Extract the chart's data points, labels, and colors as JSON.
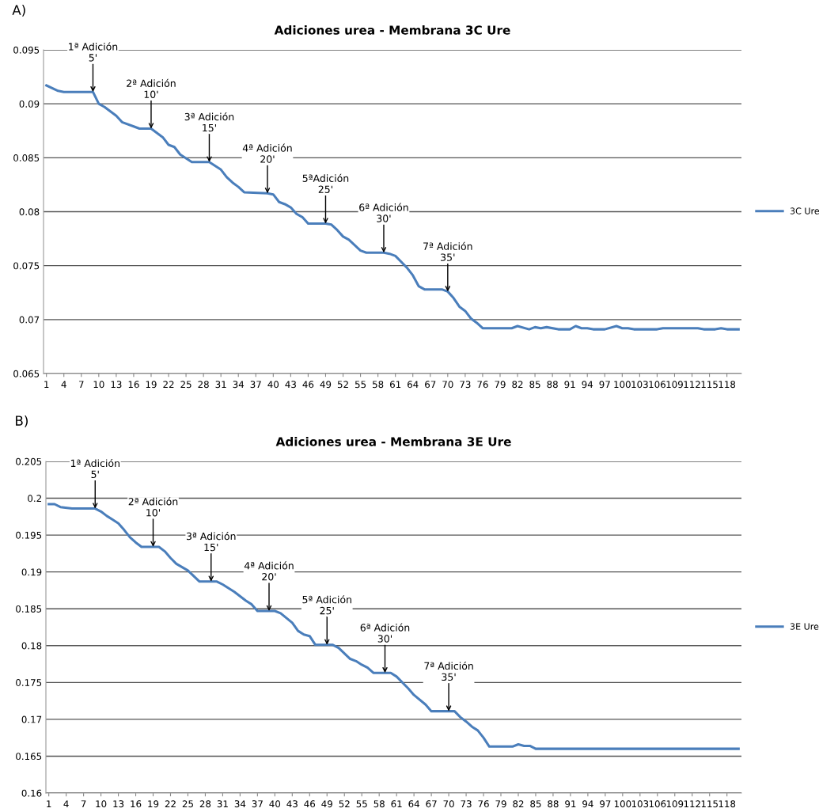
{
  "chart_data": [
    {
      "type": "line",
      "title": "Adiciones urea - Membrana 3C Ure",
      "xlim": [
        0.5,
        120.5
      ],
      "xticks": [
        1,
        4,
        7,
        10,
        13,
        16,
        19,
        22,
        25,
        28,
        31,
        34,
        37,
        40,
        43,
        46,
        49,
        52,
        55,
        58,
        61,
        64,
        67,
        70,
        73,
        76,
        79,
        82,
        85,
        88,
        91,
        94,
        97,
        100,
        103,
        106,
        109,
        112,
        115,
        118
      ],
      "ylim": [
        0.065,
        0.095
      ],
      "yticks": [
        0.065,
        0.07,
        0.075,
        0.08,
        0.085,
        0.09,
        0.095
      ],
      "grid": "y",
      "legend": "right",
      "marker": "none",
      "line_style": "solid",
      "series": [
        {
          "name": "3C Ure",
          "color": "#4a7ebb",
          "x": [
            1,
            3,
            4,
            9,
            10,
            11,
            13,
            14,
            16,
            17,
            19,
            21,
            22,
            23,
            24,
            26,
            29,
            31,
            32,
            33,
            34,
            35,
            39,
            40,
            41,
            42,
            43,
            44,
            45,
            46,
            49,
            50,
            51,
            52,
            53,
            55,
            56,
            59,
            60,
            61,
            63,
            64,
            65,
            66,
            69,
            70,
            71,
            72,
            73,
            74,
            75,
            76,
            81,
            82,
            84,
            85,
            86,
            87,
            89,
            91,
            92,
            93,
            94,
            95,
            97,
            99,
            100,
            101,
            102,
            106,
            107,
            113,
            114,
            116,
            117,
            118,
            120
          ],
          "values": [
            0.0917,
            0.0912,
            0.0911,
            0.0911,
            0.09,
            0.0897,
            0.0889,
            0.0883,
            0.0879,
            0.0877,
            0.0877,
            0.0869,
            0.0862,
            0.086,
            0.0853,
            0.0846,
            0.0846,
            0.0839,
            0.0832,
            0.0827,
            0.0823,
            0.0818,
            0.0817,
            0.0816,
            0.0809,
            0.0807,
            0.0804,
            0.0798,
            0.0795,
            0.0789,
            0.0789,
            0.0788,
            0.0783,
            0.0777,
            0.0774,
            0.0764,
            0.0762,
            0.0762,
            0.0761,
            0.0759,
            0.0748,
            0.0741,
            0.0731,
            0.0728,
            0.0728,
            0.0726,
            0.072,
            0.0712,
            0.0708,
            0.0701,
            0.0697,
            0.0692,
            0.0692,
            0.0694,
            0.0691,
            0.0693,
            0.0692,
            0.0693,
            0.0691,
            0.0691,
            0.0694,
            0.0692,
            0.0692,
            0.0691,
            0.0691,
            0.0694,
            0.0692,
            0.0692,
            0.0691,
            0.0691,
            0.0692,
            0.0692,
            0.0691,
            0.0691,
            0.0692,
            0.0691,
            0.0691
          ]
        }
      ],
      "annotations": [
        "A)",
        {
          "text": "1ª Adición\n5'",
          "x": 9,
          "y": 0.0911
        },
        {
          "text": "2ª Adición\n10'",
          "x": 19,
          "y": 0.0877
        },
        {
          "text": "3ª Adición\n15'",
          "x": 29,
          "y": 0.0846
        },
        {
          "text": "4ª Adición\n20'",
          "x": 39,
          "y": 0.0817
        },
        {
          "text": "5ªAdición\n25'",
          "x": 49,
          "y": 0.0789
        },
        {
          "text": "6ª Adición\n30'",
          "x": 59,
          "y": 0.0762
        },
        {
          "text": "7ª Adición\n35'",
          "x": 70,
          "y": 0.0726
        }
      ]
    },
    {
      "type": "line",
      "title": "Adiciones urea - Membrana 3E Ure",
      "xlim": [
        0.5,
        120.5
      ],
      "xticks": [
        1,
        4,
        7,
        10,
        13,
        16,
        19,
        22,
        25,
        28,
        31,
        34,
        37,
        40,
        43,
        46,
        49,
        52,
        55,
        58,
        61,
        64,
        67,
        70,
        73,
        76,
        79,
        82,
        85,
        88,
        91,
        94,
        97,
        100,
        103,
        106,
        109,
        112,
        115,
        118
      ],
      "ylim": [
        0.16,
        0.205
      ],
      "yticks": [
        0.16,
        0.165,
        0.17,
        0.175,
        0.18,
        0.185,
        0.19,
        0.195,
        0.2,
        0.205
      ],
      "grid": "y",
      "legend": "right",
      "marker": "none",
      "line_style": "solid",
      "series": [
        {
          "name": "3E Ure",
          "color": "#4a7ebb",
          "x": [
            1,
            2,
            3,
            5,
            9,
            10,
            11,
            12,
            13,
            14,
            15,
            16,
            17,
            20,
            21,
            22,
            23,
            25,
            27,
            30,
            31,
            33,
            35,
            36,
            37,
            40,
            41,
            43,
            44,
            45,
            46,
            47,
            50,
            51,
            53,
            54,
            55,
            56,
            57,
            60,
            61,
            63,
            64,
            66,
            67,
            71,
            72,
            73,
            74,
            75,
            76,
            77,
            81,
            82,
            83,
            84,
            85,
            120
          ],
          "values": [
            0.1992,
            0.1992,
            0.1988,
            0.1986,
            0.1986,
            0.1982,
            0.1976,
            0.1971,
            0.1966,
            0.1957,
            0.1947,
            0.194,
            0.1934,
            0.1934,
            0.1928,
            0.1919,
            0.1911,
            0.1902,
            0.1887,
            0.1887,
            0.1883,
            0.1873,
            0.1861,
            0.1856,
            0.1847,
            0.1847,
            0.1844,
            0.1831,
            0.182,
            0.1815,
            0.1813,
            0.1801,
            0.1801,
            0.1797,
            0.1782,
            0.1779,
            0.1774,
            0.177,
            0.1763,
            0.1763,
            0.1758,
            0.1742,
            0.1733,
            0.172,
            0.1711,
            0.1711,
            0.1703,
            0.1697,
            0.169,
            0.1685,
            0.1675,
            0.1663,
            0.1663,
            0.1666,
            0.1664,
            0.1664,
            0.166,
            0.166
          ]
        }
      ],
      "annotations": [
        "B)",
        {
          "text": "1ª Adición\n5'",
          "x": 9,
          "y": 0.1986
        },
        {
          "text": "2ª Adición\n10'",
          "x": 19,
          "y": 0.1934
        },
        {
          "text": "3ª Adición\n15'",
          "x": 29,
          "y": 0.1887
        },
        {
          "text": "4ª Adición\n20'",
          "x": 39,
          "y": 0.1847
        },
        {
          "text": "5ª Adición\n25'",
          "x": 49,
          "y": 0.1801
        },
        {
          "text": "6ª Adición\n30'",
          "x": 59,
          "y": 0.1763
        },
        {
          "text": "7ª Adición\n35'",
          "x": 70,
          "y": 0.1711
        }
      ]
    }
  ]
}
